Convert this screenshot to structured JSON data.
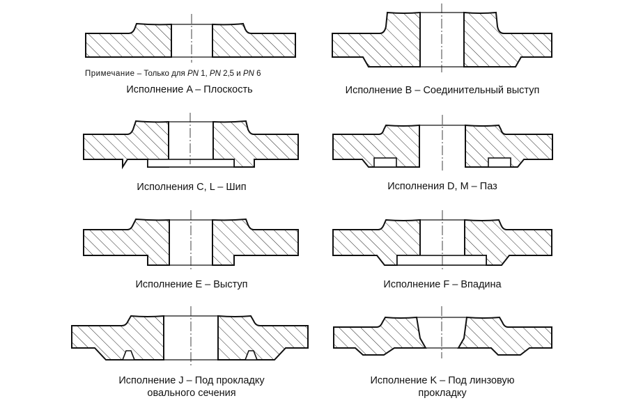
{
  "note": {
    "prefix": "Примечание",
    "text": " – Только для ",
    "pn": "PN",
    "v1": " 1, ",
    "v2": " 2,5 и ",
    "v3": " 6"
  },
  "captions": {
    "a": "Исполнение A – Плоскость",
    "b": "Исполнение B – Соединительный выступ",
    "c": "Исполнения C, L – Шип",
    "d": "Исполнения D, M – Паз",
    "e": "Исполнение E – Выступ",
    "f": "Исполнение F – Впадина",
    "j_line1": "Исполнение J – Под прокладку",
    "j_line2": "овального сечения",
    "k_line1": "Исполнение K – Под линзовую",
    "k_line2": "прокладку"
  }
}
